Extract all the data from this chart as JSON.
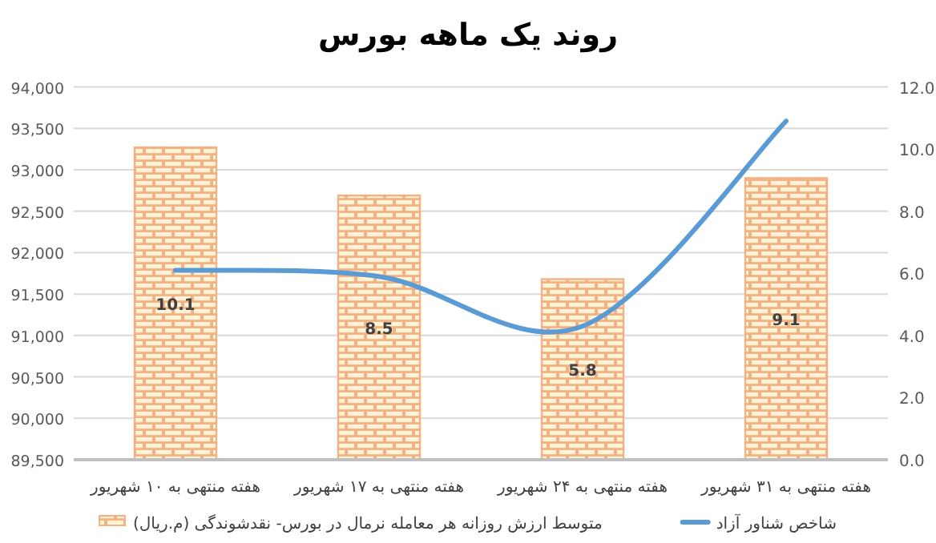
{
  "chart_data": {
    "type": "bar",
    "title": "روند یک ماهه بورس",
    "categories": [
      "هفته منتهی به ۱۰ شهریور",
      "هفته منتهی به ۱۷ شهریور",
      "هفته منتهی به ۲۴ شهریور",
      "هفته منتهی به ۳۱ شهریور"
    ],
    "series": [
      {
        "name": "متوسط ارزش روزانه هر معامله نرمال در بورس- نقدشوندگی (م.ریال)",
        "type": "bar",
        "color": "#f4b183",
        "values": [
          93270,
          92690,
          91680,
          92900
        ]
      },
      {
        "name": "شاخص شناور آزاد",
        "type": "line",
        "axis": "y2",
        "color": "#5b9bd5",
        "values": [
          6.1,
          5.9,
          4.3,
          10.9
        ]
      }
    ],
    "ylim": [
      89500,
      94000
    ],
    "yticks": [
      {
        "value": 89500,
        "label": "89,500"
      },
      {
        "value": 90000,
        "label": "90,000"
      },
      {
        "value": 90500,
        "label": "90,500"
      },
      {
        "value": 91000,
        "label": "91,000"
      },
      {
        "value": 91500,
        "label": "91,500"
      },
      {
        "value": 92000,
        "label": "92,000"
      },
      {
        "value": 92500,
        "label": "92,500"
      },
      {
        "value": 93000,
        "label": "93,000"
      },
      {
        "value": 93500,
        "label": "93,500"
      },
      {
        "value": 94000,
        "label": "94,000"
      }
    ],
    "y2lim": [
      0,
      12
    ],
    "y2ticks": [
      {
        "value": 0,
        "label": "0.0"
      },
      {
        "value": 2,
        "label": "2.0"
      },
      {
        "value": 4,
        "label": "4.0"
      },
      {
        "value": 6,
        "label": "6.0"
      },
      {
        "value": 8,
        "label": "8.0"
      },
      {
        "value": 10,
        "label": "10.0"
      },
      {
        "value": 12,
        "label": "12.0"
      }
    ],
    "annotations": [
      "10.1",
      "8.5",
      "5.8",
      "9.1"
    ],
    "grid": "y",
    "legend": "bottom"
  }
}
